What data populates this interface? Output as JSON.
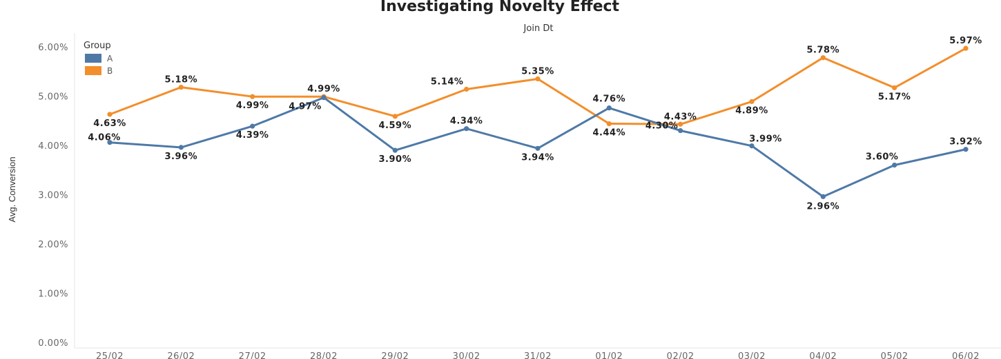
{
  "chart_data": {
    "type": "line",
    "title": "Investigating Novelty Effect",
    "subtitle": "Join Dt",
    "xlabel": "",
    "ylabel": "Avg. Conversion",
    "categories": [
      "25/02",
      "26/02",
      "27/02",
      "28/02",
      "29/02",
      "30/02",
      "31/02",
      "01/02",
      "02/02",
      "03/02",
      "04/02",
      "05/02",
      "06/02"
    ],
    "ylim": [
      0,
      6
    ],
    "yticks": [
      "0.00%",
      "1.00%",
      "2.00%",
      "3.00%",
      "4.00%",
      "5.00%",
      "6.00%"
    ],
    "legend": {
      "title": "Group",
      "position": "top-left"
    },
    "series": [
      {
        "name": "A",
        "color": "#4e79a7",
        "values": [
          4.06,
          3.96,
          4.39,
          4.97,
          3.9,
          4.34,
          3.94,
          4.76,
          4.3,
          3.99,
          2.96,
          3.6,
          3.92
        ],
        "labels": [
          "4.06%",
          "3.96%",
          "4.39%",
          "4.97%",
          "3.90%",
          "4.34%",
          "3.94%",
          "4.76%",
          "4.30%",
          "3.99%",
          "2.96%",
          "3.60%",
          "3.92%"
        ]
      },
      {
        "name": "B",
        "color": "#f28e2b",
        "values": [
          4.63,
          5.18,
          4.99,
          4.99,
          4.59,
          5.14,
          5.35,
          4.44,
          4.43,
          4.89,
          5.78,
          5.17,
          5.97
        ],
        "labels": [
          "4.63%",
          "5.18%",
          "4.99%",
          "4.99%",
          "4.59%",
          "5.14%",
          "5.35%",
          "4.44%",
          "4.43%",
          "4.89%",
          "5.78%",
          "5.17%",
          "5.97%"
        ]
      }
    ]
  }
}
